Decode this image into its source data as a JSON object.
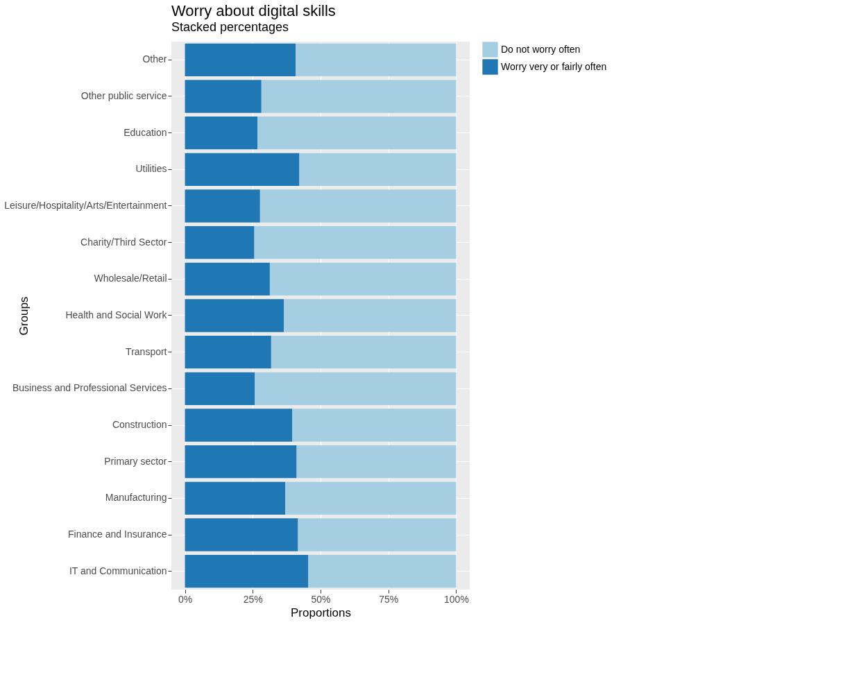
{
  "chart_data": {
    "type": "bar",
    "title": "Worry about digital skills",
    "subtitle": "Stacked percentages",
    "xlabel": "Proportions",
    "ylabel": "Groups",
    "categories": [
      "Other",
      "Other public service",
      "Education",
      "Utilities",
      "Leisure/Hospitality/Arts/Entertainment",
      "Charity/Third Sector",
      "Wholesale/Retail",
      "Health and Social Work",
      "Transport",
      "Business and Professional Services",
      "Construction",
      "Primary sector",
      "Manufacturing",
      "Finance and Insurance",
      "IT and Communication"
    ],
    "orientation": "horizontal",
    "stacked": true,
    "series": [
      {
        "name": "Worry very or fairly often",
        "color": "#1f78b4",
        "values": [
          40.8,
          28.2,
          26.8,
          42.2,
          27.7,
          25.6,
          31.3,
          36.5,
          31.8,
          25.8,
          39.6,
          41.2,
          37.0,
          41.7,
          45.5
        ]
      },
      {
        "name": "Do not worry often",
        "color": "#a6cee3",
        "values": [
          59.2,
          71.8,
          73.2,
          57.8,
          72.3,
          74.4,
          68.7,
          63.5,
          68.2,
          74.2,
          60.4,
          58.8,
          63.0,
          58.3,
          54.5
        ]
      }
    ],
    "xlim": [
      -5,
      105
    ],
    "xticks": [
      {
        "value": 0,
        "label": "0%"
      },
      {
        "value": 25,
        "label": "25%"
      },
      {
        "value": 50,
        "label": "50%"
      },
      {
        "value": 75,
        "label": "75%"
      },
      {
        "value": 100,
        "label": "100%"
      }
    ],
    "grid": true,
    "legend": "right"
  }
}
